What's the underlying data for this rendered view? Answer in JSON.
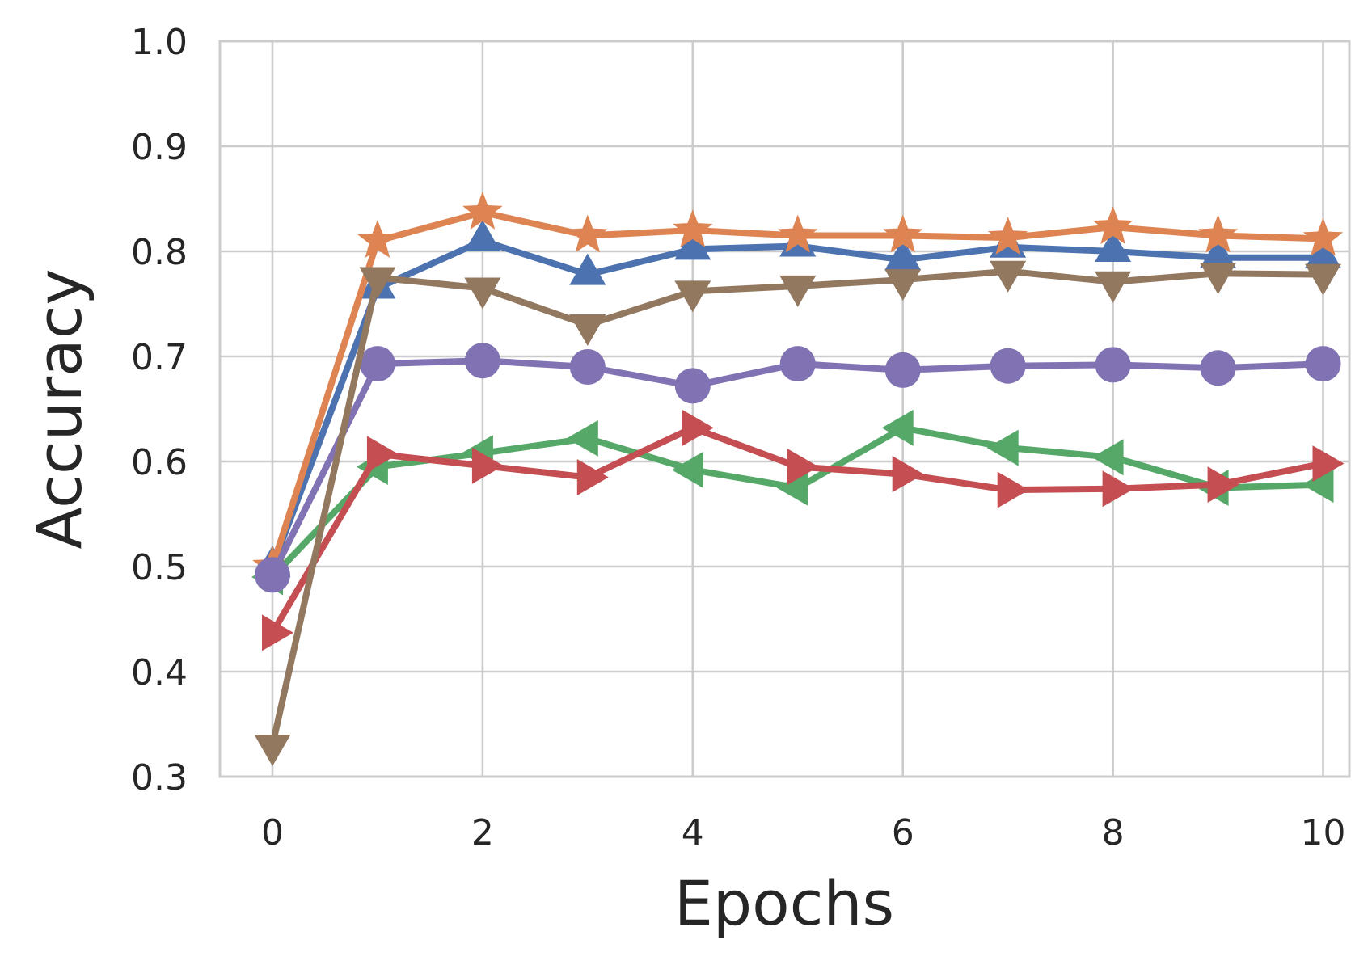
{
  "chart_data": {
    "type": "line",
    "xlabel": "Epochs",
    "ylabel": "Accuracy",
    "xlim": [
      -0.5,
      10.25
    ],
    "ylim": [
      0.3,
      1.0
    ],
    "xticks": [
      0,
      2,
      4,
      6,
      8,
      10
    ],
    "yticks": [
      0.3,
      0.4,
      0.5,
      0.6,
      0.7,
      0.8,
      0.9,
      1.0
    ],
    "xtick_labels": [
      "0",
      "2",
      "4",
      "6",
      "8",
      "10"
    ],
    "ytick_labels": [
      "0.3",
      "0.4",
      "0.5",
      "0.6",
      "0.7",
      "0.8",
      "0.9",
      "1.0"
    ],
    "grid": true,
    "x": [
      0,
      1,
      2,
      3,
      4,
      5,
      6,
      7,
      8,
      9,
      10
    ],
    "series": [
      {
        "marker": "triangle-up",
        "color": "#4c72b0",
        "values": [
          0.5,
          0.765,
          0.81,
          0.778,
          0.802,
          0.805,
          0.792,
          0.804,
          0.8,
          0.794,
          0.794
        ]
      },
      {
        "marker": "star",
        "color": "#dd8452",
        "values": [
          0.5,
          0.81,
          0.837,
          0.815,
          0.82,
          0.815,
          0.815,
          0.813,
          0.823,
          0.815,
          0.812
        ]
      },
      {
        "marker": "triangle-left",
        "color": "#55a868",
        "values": [
          0.49,
          0.595,
          0.608,
          0.622,
          0.592,
          0.575,
          0.632,
          0.613,
          0.604,
          0.575,
          0.578
        ]
      },
      {
        "marker": "triangle-right",
        "color": "#c44e52",
        "values": [
          0.437,
          0.607,
          0.596,
          0.585,
          0.632,
          0.595,
          0.588,
          0.573,
          0.574,
          0.578,
          0.598
        ]
      },
      {
        "marker": "circle",
        "color": "#8172b3",
        "values": [
          0.492,
          0.693,
          0.696,
          0.69,
          0.672,
          0.693,
          0.687,
          0.691,
          0.692,
          0.689,
          0.693
        ]
      },
      {
        "marker": "triangle-down",
        "color": "#937860",
        "values": [
          0.33,
          0.775,
          0.765,
          0.73,
          0.762,
          0.767,
          0.773,
          0.781,
          0.771,
          0.779,
          0.778
        ]
      }
    ]
  }
}
